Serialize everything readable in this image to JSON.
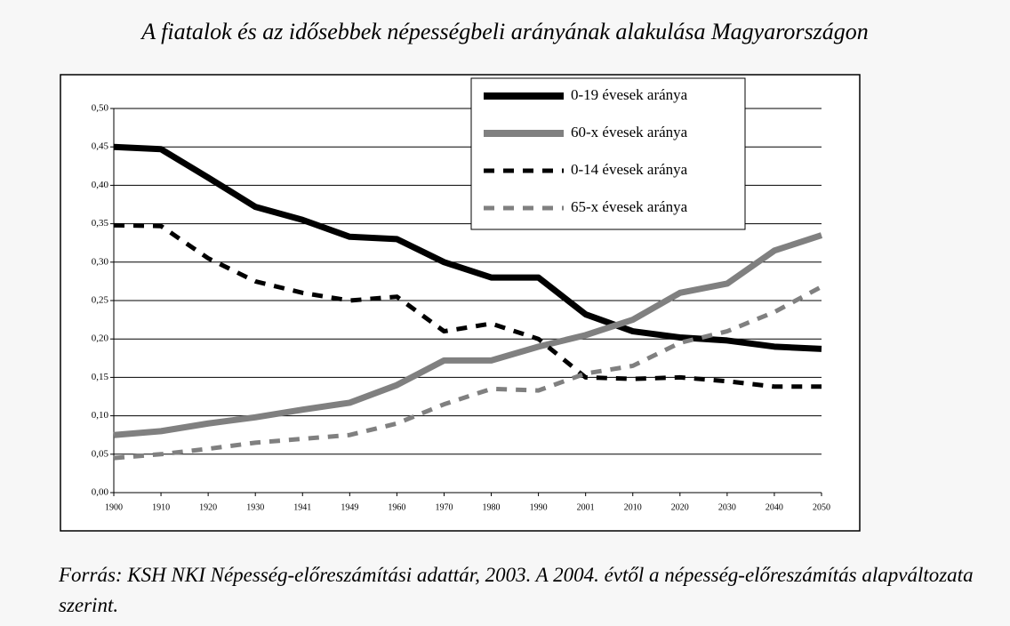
{
  "chart_data": {
    "type": "line",
    "title": "A fiatalok és az idősebbek népességbeli arányának alakulása Magyarországon",
    "source": "Forrás: KSH NKI Népesség-előreszámítási adattár, 2003. A 2004. évtől a népesség-előreszámítás alapváltozata szerint.",
    "categories": [
      "1900",
      "1910",
      "1920",
      "1930",
      "1941",
      "1949",
      "1960",
      "1970",
      "1980",
      "1990",
      "2001",
      "2010",
      "2020",
      "2030",
      "2040",
      "2050"
    ],
    "series": [
      {
        "name": "0-19 évesek aránya",
        "color": "#000000",
        "dashed": false,
        "values": [
          0.45,
          0.447,
          0.41,
          0.372,
          0.355,
          0.333,
          0.33,
          0.3,
          0.28,
          0.28,
          0.232,
          0.21,
          0.202,
          0.198,
          0.19,
          0.187
        ]
      },
      {
        "name": "60-x évesek aránya",
        "color": "#808080",
        "dashed": false,
        "values": [
          0.075,
          0.08,
          0.09,
          0.098,
          0.108,
          0.117,
          0.14,
          0.172,
          0.172,
          0.19,
          0.205,
          0.225,
          0.26,
          0.272,
          0.315,
          0.335
        ]
      },
      {
        "name": "0-14 évesek aránya",
        "color": "#000000",
        "dashed": true,
        "values": [
          0.348,
          0.347,
          0.305,
          0.275,
          0.26,
          0.25,
          0.255,
          0.21,
          0.22,
          0.2,
          0.15,
          0.148,
          0.15,
          0.145,
          0.138,
          0.138
        ]
      },
      {
        "name": "65-x évesek aránya",
        "color": "#808080",
        "dashed": true,
        "values": [
          0.045,
          0.05,
          0.057,
          0.065,
          0.07,
          0.075,
          0.09,
          0.115,
          0.135,
          0.133,
          0.155,
          0.165,
          0.195,
          0.21,
          0.235,
          0.268
        ]
      }
    ],
    "ylim": [
      0,
      0.5
    ],
    "yticks": [
      {
        "value": 0,
        "label": "0,00"
      },
      {
        "value": 0.05,
        "label": "0,05"
      },
      {
        "value": 0.1,
        "label": "0,10"
      },
      {
        "value": 0.15,
        "label": "0,15"
      },
      {
        "value": 0.2,
        "label": "0,20"
      },
      {
        "value": 0.25,
        "label": "0,25"
      },
      {
        "value": 0.3,
        "label": "0,30"
      },
      {
        "value": 0.35,
        "label": "0,35"
      },
      {
        "value": 0.4,
        "label": "0,40"
      },
      {
        "value": 0.45,
        "label": "0,45"
      },
      {
        "value": 0.5,
        "label": "0,50"
      }
    ],
    "grid": true,
    "legend": "top-right"
  }
}
